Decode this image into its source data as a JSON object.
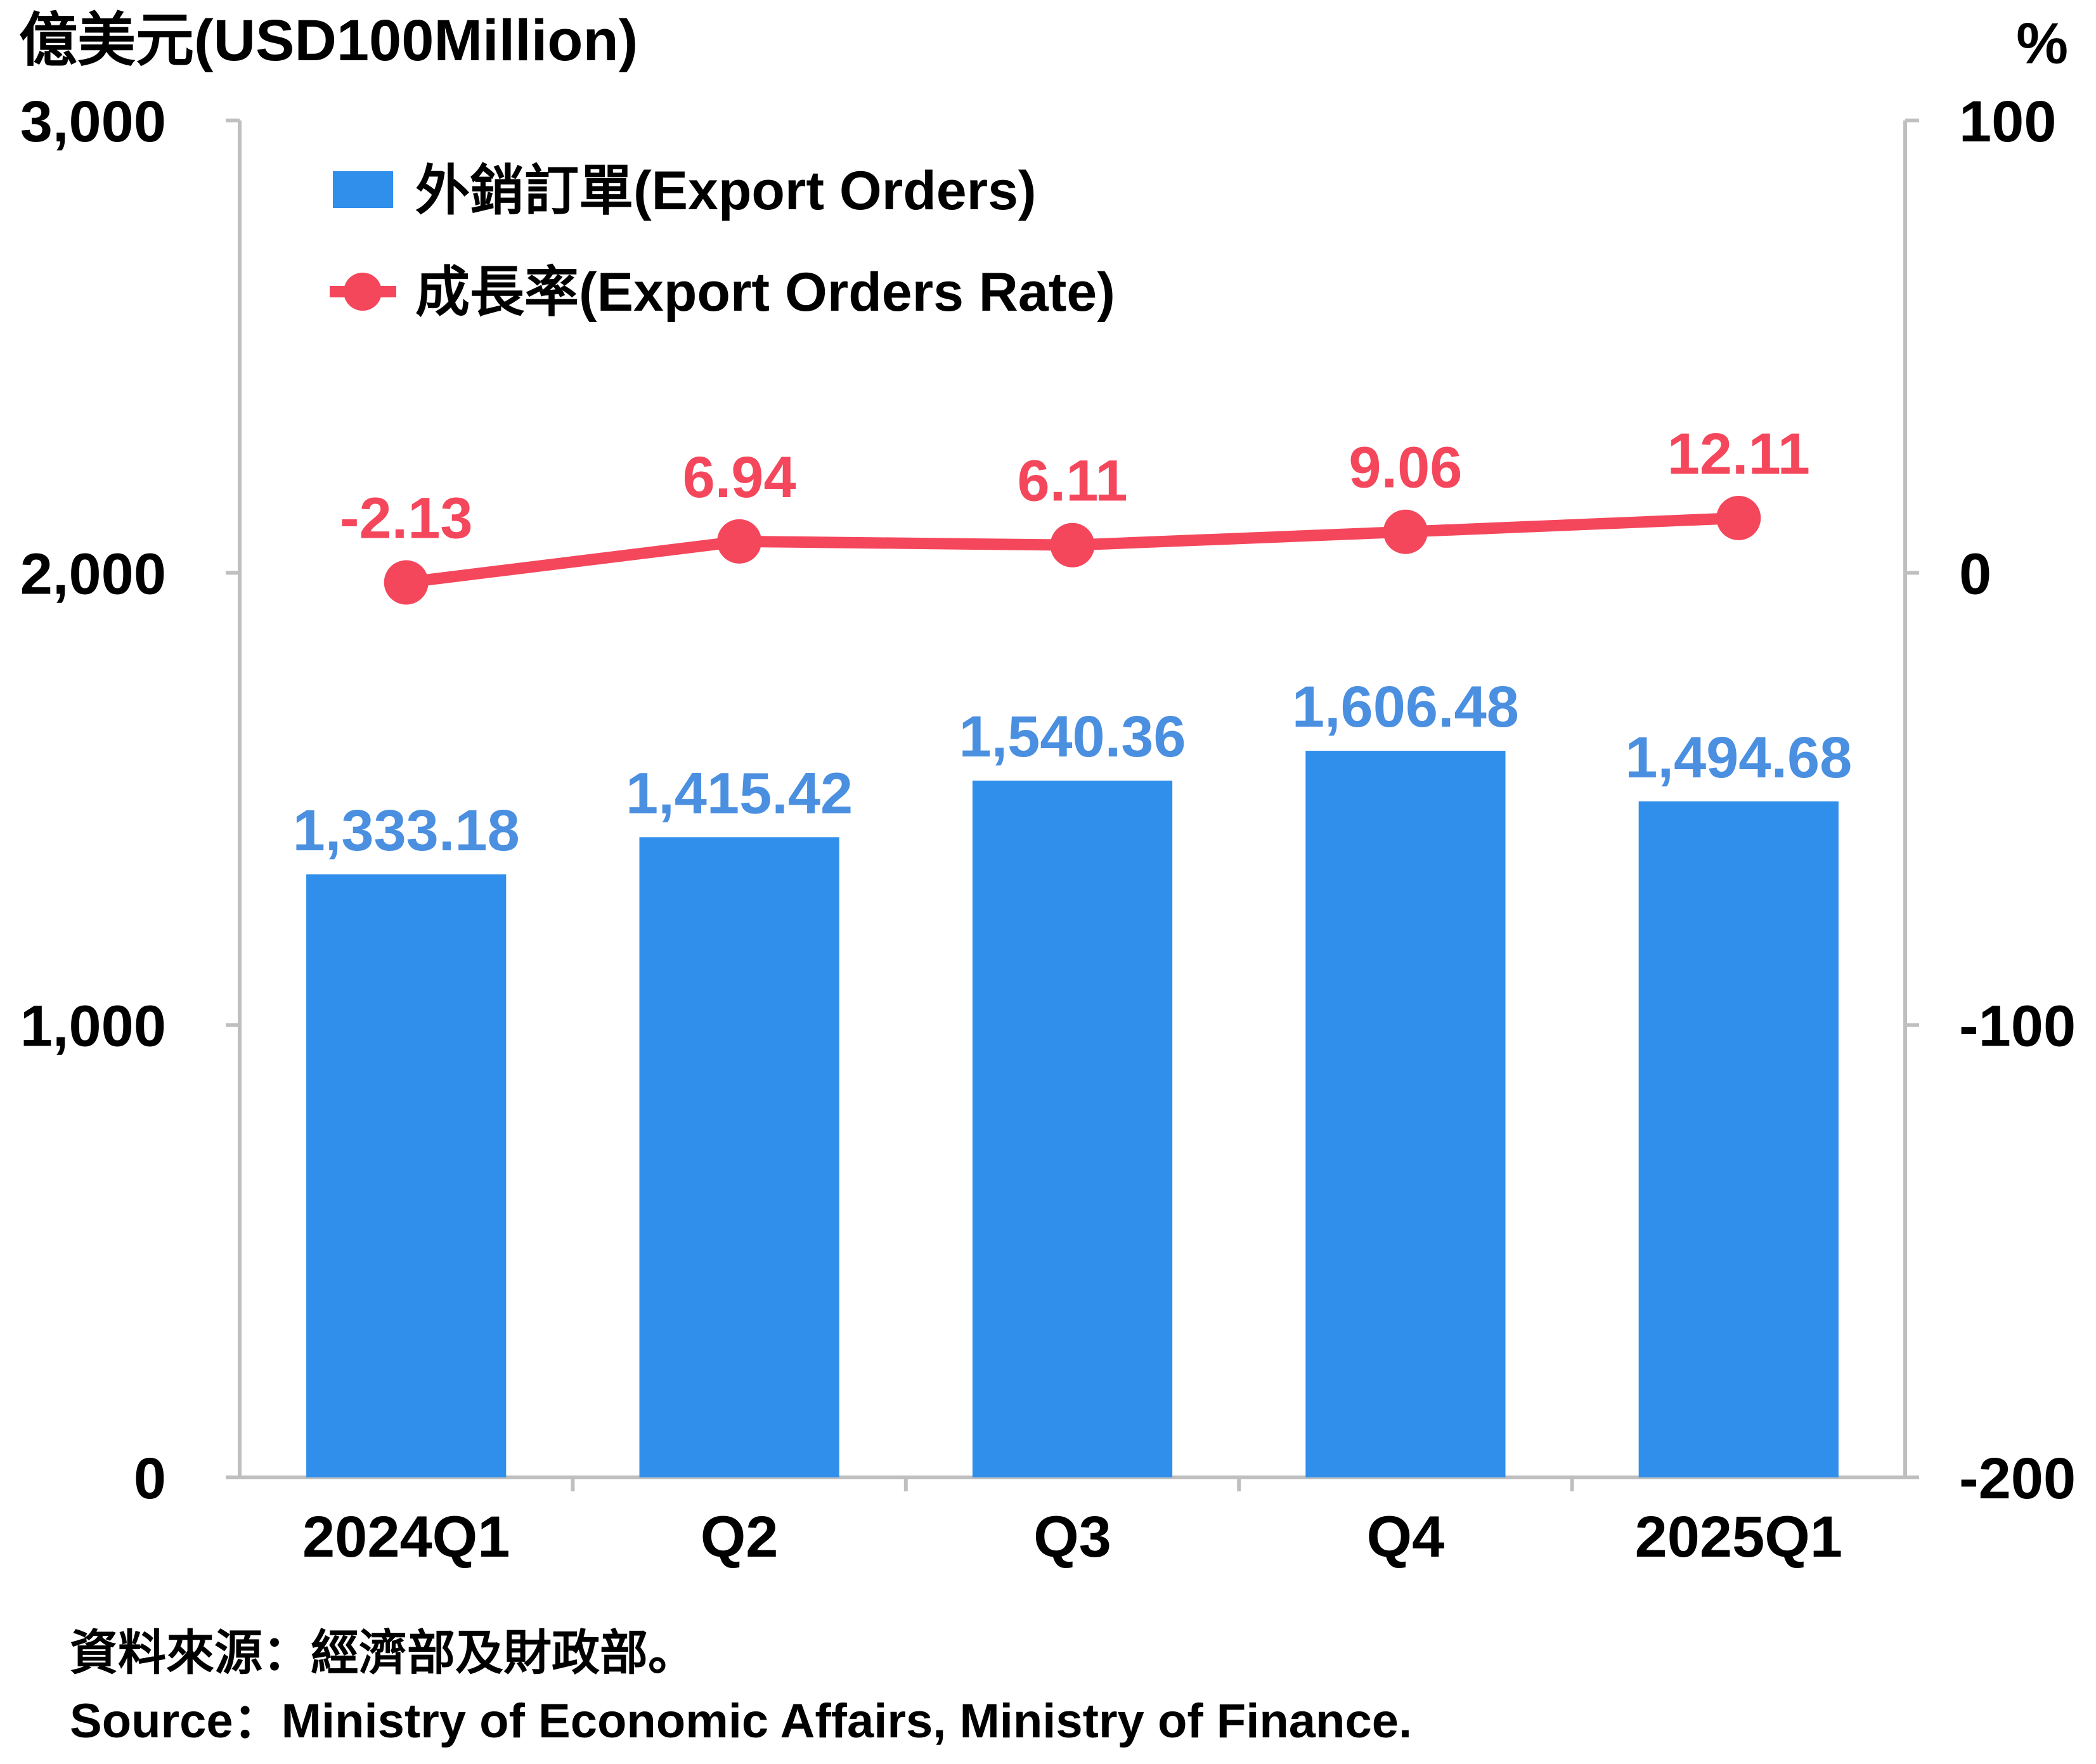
{
  "colors": {
    "bar": "#318fec",
    "bar_label": "#4a8fe0",
    "line": "#f4475c",
    "axis": "#bfbfbf"
  },
  "chart_data": {
    "type": "bar",
    "categories": [
      "2024Q1",
      "Q2",
      "Q3",
      "Q4",
      "2025Q1"
    ],
    "series": [
      {
        "name": "外銷訂單(Export Orders)",
        "type": "bar",
        "axis": "left",
        "values": [
          1333.18,
          1415.42,
          1540.36,
          1606.48,
          1494.68
        ],
        "labels": [
          "1,333.18",
          "1,415.42",
          "1,540.36",
          "1,606.48",
          "1,494.68"
        ]
      },
      {
        "name": "成長率(Export Orders Rate)",
        "type": "line",
        "axis": "right",
        "values": [
          -2.13,
          6.94,
          6.11,
          9.06,
          12.11
        ],
        "labels": [
          "-2.13",
          "6.94",
          "6.11",
          "9.06",
          "12.11"
        ]
      }
    ],
    "y_left": {
      "unit": "億美元(USD100Million)",
      "range": [
        0,
        3000
      ],
      "ticks": [
        0,
        1000,
        2000,
        3000
      ],
      "tick_labels": [
        "0",
        "1,000",
        "2,000",
        "3,000"
      ]
    },
    "y_right": {
      "unit": "%",
      "range": [
        -200,
        100
      ],
      "ticks": [
        -200,
        -100,
        0,
        100
      ],
      "tick_labels": [
        "-200",
        "-100",
        "0",
        "100"
      ]
    },
    "grid": false,
    "legend": "top-left"
  },
  "source": {
    "zh": "資料來源：經濟部及財政部。",
    "en": "Source：Ministry of Economic Affairs, Ministry of Finance."
  }
}
